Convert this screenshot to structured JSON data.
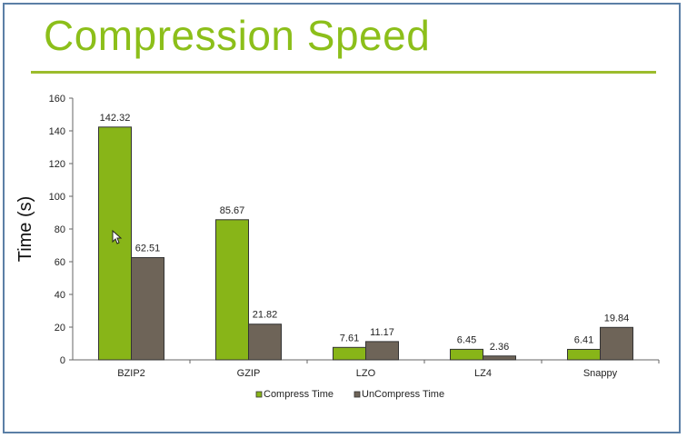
{
  "slide": {
    "title": "Compression Speed"
  },
  "colors": {
    "title": "#8cbf1a",
    "rule": "#9cbc2c",
    "border": "#5b7fa6",
    "compress": "#88b518",
    "uncompress": "#6e6458"
  },
  "chart_data": {
    "type": "bar",
    "title": "",
    "xlabel": "",
    "ylabel": "Time (s)",
    "ylim": [
      0,
      160
    ],
    "yticks": [
      0,
      20,
      40,
      60,
      80,
      100,
      120,
      140,
      160
    ],
    "categories": [
      "BZIP2",
      "GZIP",
      "LZO",
      "LZ4",
      "Snappy"
    ],
    "series": [
      {
        "name": "Compress Time",
        "values": [
          142.32,
          85.67,
          7.61,
          6.45,
          6.41
        ]
      },
      {
        "name": "UnCompress Time",
        "values": [
          62.51,
          21.82,
          11.17,
          2.36,
          19.84
        ]
      }
    ],
    "legend_position": "bottom"
  }
}
